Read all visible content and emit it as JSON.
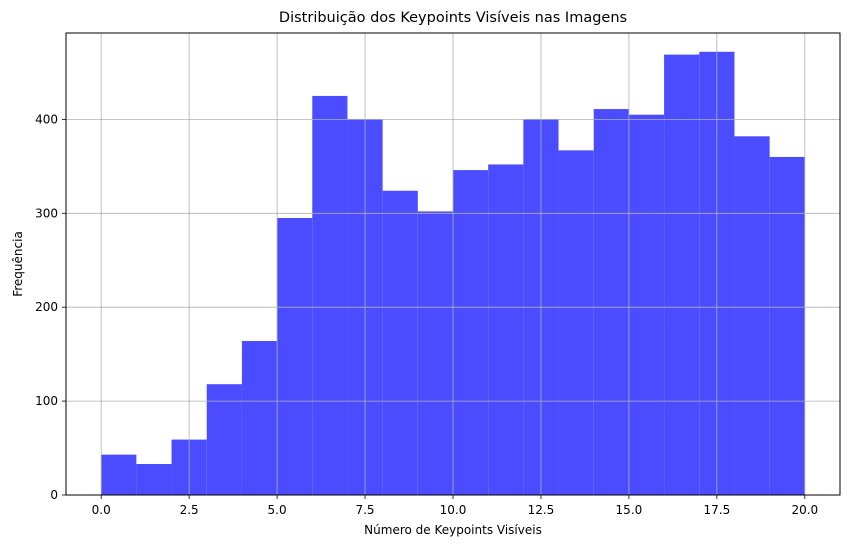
{
  "chart_data": {
    "type": "bar",
    "title": "Distribuição dos Keypoints Visíveis nas Imagens",
    "xlabel": "Número de Keypoints Visíveis",
    "ylabel": "Frequência",
    "xlim": [
      -1,
      21
    ],
    "ylim": [
      0,
      492
    ],
    "xticks": [
      0.0,
      2.5,
      5.0,
      7.5,
      10.0,
      12.5,
      15.0,
      17.5,
      20.0
    ],
    "xtick_labels": [
      "0.0",
      "2.5",
      "5.0",
      "7.5",
      "10.0",
      "12.5",
      "15.0",
      "17.5",
      "20.0"
    ],
    "yticks": [
      0,
      100,
      200,
      300,
      400
    ],
    "ytick_labels": [
      "0",
      "100",
      "200",
      "300",
      "400"
    ],
    "grid": true,
    "bar_color": "#4b4bff",
    "bins": [
      {
        "x0": 0,
        "x1": 1,
        "value": 43
      },
      {
        "x0": 1,
        "x1": 2,
        "value": 33
      },
      {
        "x0": 2,
        "x1": 3,
        "value": 59
      },
      {
        "x0": 3,
        "x1": 4,
        "value": 118
      },
      {
        "x0": 4,
        "x1": 5,
        "value": 164
      },
      {
        "x0": 5,
        "x1": 6,
        "value": 295
      },
      {
        "x0": 6,
        "x1": 7,
        "value": 425
      },
      {
        "x0": 7,
        "x1": 8,
        "value": 400
      },
      {
        "x0": 8,
        "x1": 9,
        "value": 324
      },
      {
        "x0": 9,
        "x1": 10,
        "value": 302
      },
      {
        "x0": 10,
        "x1": 11,
        "value": 346
      },
      {
        "x0": 11,
        "x1": 12,
        "value": 352
      },
      {
        "x0": 12,
        "x1": 13,
        "value": 400
      },
      {
        "x0": 13,
        "x1": 14,
        "value": 367
      },
      {
        "x0": 14,
        "x1": 15,
        "value": 411
      },
      {
        "x0": 15,
        "x1": 16,
        "value": 405
      },
      {
        "x0": 16,
        "x1": 17,
        "value": 469
      },
      {
        "x0": 17,
        "x1": 18,
        "value": 472
      },
      {
        "x0": 18,
        "x1": 19,
        "value": 382
      },
      {
        "x0": 19,
        "x1": 20,
        "value": 360
      }
    ]
  }
}
